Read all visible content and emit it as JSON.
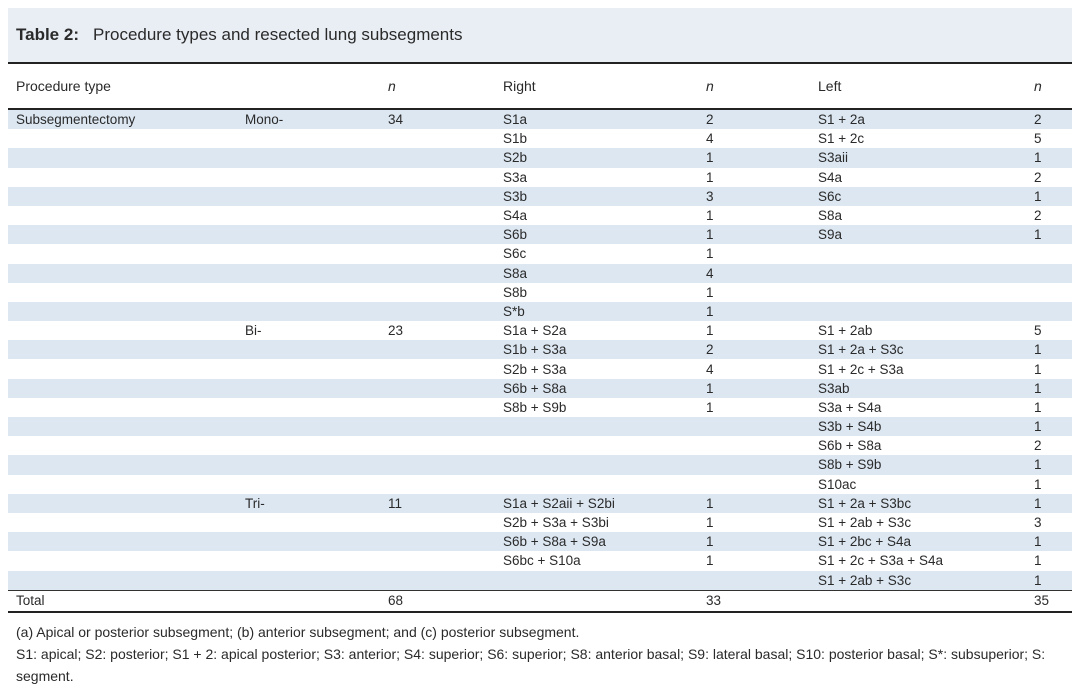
{
  "title": {
    "label": "Table 2:",
    "text": "Procedure types and resected lung subsegments"
  },
  "table": {
    "columns": [
      "Procedure type",
      "",
      "n",
      "Right",
      "n",
      "Left",
      "n"
    ],
    "rows": [
      {
        "procedure": "Subsegmentectomy",
        "subtype": "Mono-",
        "n": "34",
        "right": "S1a",
        "n_right": "2",
        "left": "S1 + 2a",
        "n_left": "2"
      },
      {
        "procedure": "",
        "subtype": "",
        "n": "",
        "right": "S1b",
        "n_right": "4",
        "left": "S1 + 2c",
        "n_left": "5"
      },
      {
        "procedure": "",
        "subtype": "",
        "n": "",
        "right": "S2b",
        "n_right": "1",
        "left": "S3aii",
        "n_left": "1"
      },
      {
        "procedure": "",
        "subtype": "",
        "n": "",
        "right": "S3a",
        "n_right": "1",
        "left": "S4a",
        "n_left": "2"
      },
      {
        "procedure": "",
        "subtype": "",
        "n": "",
        "right": "S3b",
        "n_right": "3",
        "left": "S6c",
        "n_left": "1"
      },
      {
        "procedure": "",
        "subtype": "",
        "n": "",
        "right": "S4a",
        "n_right": "1",
        "left": "S8a",
        "n_left": "2"
      },
      {
        "procedure": "",
        "subtype": "",
        "n": "",
        "right": "S6b",
        "n_right": "1",
        "left": "S9a",
        "n_left": "1"
      },
      {
        "procedure": "",
        "subtype": "",
        "n": "",
        "right": "S6c",
        "n_right": "1",
        "left": "",
        "n_left": ""
      },
      {
        "procedure": "",
        "subtype": "",
        "n": "",
        "right": "S8a",
        "n_right": "4",
        "left": "",
        "n_left": ""
      },
      {
        "procedure": "",
        "subtype": "",
        "n": "",
        "right": "S8b",
        "n_right": "1",
        "left": "",
        "n_left": ""
      },
      {
        "procedure": "",
        "subtype": "",
        "n": "",
        "right": "S*b",
        "n_right": "1",
        "left": "",
        "n_left": ""
      },
      {
        "procedure": "",
        "subtype": "Bi-",
        "n": "23",
        "right": "S1a + S2a",
        "n_right": "1",
        "left": "S1 + 2ab",
        "n_left": "5"
      },
      {
        "procedure": "",
        "subtype": "",
        "n": "",
        "right": "S1b + S3a",
        "n_right": "2",
        "left": "S1 + 2a + S3c",
        "n_left": "1"
      },
      {
        "procedure": "",
        "subtype": "",
        "n": "",
        "right": "S2b + S3a",
        "n_right": "4",
        "left": "S1 + 2c + S3a",
        "n_left": "1"
      },
      {
        "procedure": "",
        "subtype": "",
        "n": "",
        "right": "S6b + S8a",
        "n_right": "1",
        "left": "S3ab",
        "n_left": "1"
      },
      {
        "procedure": "",
        "subtype": "",
        "n": "",
        "right": "S8b + S9b",
        "n_right": "1",
        "left": "S3a + S4a",
        "n_left": "1"
      },
      {
        "procedure": "",
        "subtype": "",
        "n": "",
        "right": "",
        "n_right": "",
        "left": "S3b + S4b",
        "n_left": "1"
      },
      {
        "procedure": "",
        "subtype": "",
        "n": "",
        "right": "",
        "n_right": "",
        "left": "S6b + S8a",
        "n_left": "2"
      },
      {
        "procedure": "",
        "subtype": "",
        "n": "",
        "right": "",
        "n_right": "",
        "left": "S8b + S9b",
        "n_left": "1"
      },
      {
        "procedure": "",
        "subtype": "",
        "n": "",
        "right": "",
        "n_right": "",
        "left": "S10ac",
        "n_left": "1"
      },
      {
        "procedure": "",
        "subtype": "Tri-",
        "n": "11",
        "right": "S1a + S2aii + S2bi",
        "n_right": "1",
        "left": "S1 + 2a + S3bc",
        "n_left": "1"
      },
      {
        "procedure": "",
        "subtype": "",
        "n": "",
        "right": "S2b + S3a + S3bi",
        "n_right": "1",
        "left": "S1 + 2ab + S3c",
        "n_left": "3"
      },
      {
        "procedure": "",
        "subtype": "",
        "n": "",
        "right": "S6b + S8a + S9a",
        "n_right": "1",
        "left": "S1 + 2bc + S4a",
        "n_left": "1"
      },
      {
        "procedure": "",
        "subtype": "",
        "n": "",
        "right": "S6bc + S10a",
        "n_right": "1",
        "left": "S1 + 2c + S3a + S4a",
        "n_left": "1"
      },
      {
        "procedure": "",
        "subtype": "",
        "n": "",
        "right": "",
        "n_right": "",
        "left": "S1 + 2ab + S3c",
        "n_left": "1"
      }
    ],
    "total": {
      "label": "Total",
      "n": "68",
      "n_right": "33",
      "n_left": "35"
    }
  },
  "footnotes": [
    "(a) Apical or posterior subsegment; (b) anterior subsegment; and (c) posterior subsegment.",
    "S1: apical; S2: posterior; S1 + 2: apical posterior; S3: anterior; S4: superior; S6: superior; S8: anterior basal; S9: lateral basal; S10: posterior basal; S*: subsuperior; S: segment."
  ],
  "colors": {
    "stripe": "#dce7f2",
    "title_band": "#e9eef5",
    "rule": "#222222",
    "text": "#2a2a2a"
  }
}
